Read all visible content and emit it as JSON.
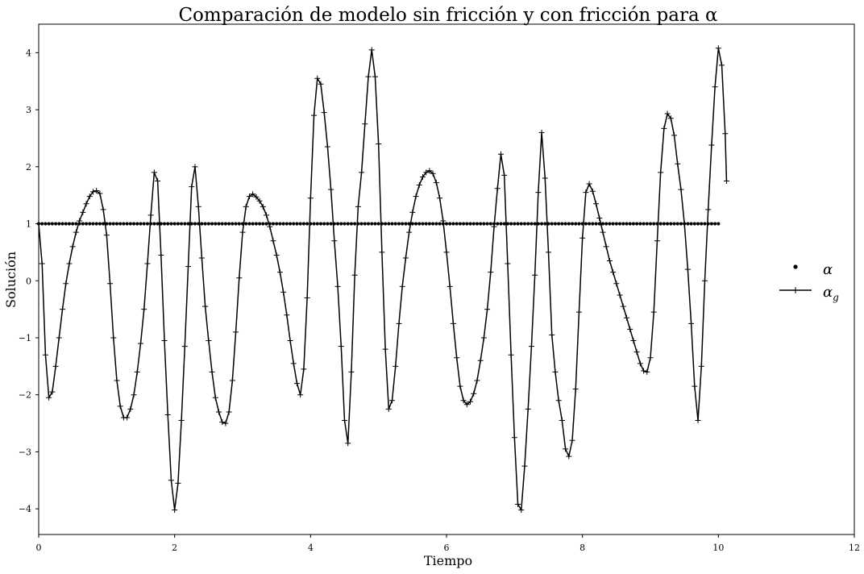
{
  "chart_data": {
    "type": "line",
    "title": "Comparación de modelo sin fricción y con fricción para α",
    "xlabel": "Tiempo",
    "ylabel": "Solución",
    "xlim": [
      0,
      12
    ],
    "ylim": [
      -4.45,
      4.5
    ],
    "xticks": [
      0,
      2,
      4,
      6,
      8,
      10,
      12
    ],
    "yticks": [
      -4,
      -3,
      -2,
      -1,
      0,
      1,
      2,
      3,
      4
    ],
    "xtick_labels": [
      "0",
      "2",
      "4",
      "6",
      "8",
      "10",
      "12"
    ],
    "ytick_labels": [
      "−4",
      "−3",
      "−2",
      "−1",
      "0",
      "1",
      "2",
      "3",
      "4"
    ],
    "grid": false,
    "legend_position": "center-right",
    "series": [
      {
        "name": "α",
        "style": "dots",
        "color": "#000000",
        "constant": 1,
        "x_range": [
          0,
          10
        ],
        "point_count": 201
      },
      {
        "name": "α",
        "subscript": "g",
        "style": "line-plus",
        "color": "#000000",
        "points": [
          [
            0,
            1
          ],
          [
            0.05,
            0.3
          ],
          [
            0.1,
            -1.3
          ],
          [
            0.15,
            -2.05
          ],
          [
            0.2,
            -1.95
          ],
          [
            0.25,
            -1.5
          ],
          [
            0.3,
            -1.0
          ],
          [
            0.35,
            -0.5
          ],
          [
            0.4,
            -0.05
          ],
          [
            0.45,
            0.3
          ],
          [
            0.5,
            0.6
          ],
          [
            0.55,
            0.85
          ],
          [
            0.6,
            1.05
          ],
          [
            0.65,
            1.2
          ],
          [
            0.7,
            1.35
          ],
          [
            0.75,
            1.48
          ],
          [
            0.8,
            1.56
          ],
          [
            0.85,
            1.58
          ],
          [
            0.9,
            1.53
          ],
          [
            0.95,
            1.25
          ],
          [
            1.0,
            0.8
          ],
          [
            1.05,
            -0.05
          ],
          [
            1.1,
            -1.0
          ],
          [
            1.15,
            -1.75
          ],
          [
            1.2,
            -2.2
          ],
          [
            1.25,
            -2.4
          ],
          [
            1.3,
            -2.4
          ],
          [
            1.35,
            -2.25
          ],
          [
            1.4,
            -2.0
          ],
          [
            1.45,
            -1.6
          ],
          [
            1.5,
            -1.1
          ],
          [
            1.55,
            -0.5
          ],
          [
            1.6,
            0.3
          ],
          [
            1.65,
            1.15
          ],
          [
            1.7,
            1.9
          ],
          [
            1.75,
            1.75
          ],
          [
            1.8,
            0.45
          ],
          [
            1.85,
            -1.05
          ],
          [
            1.9,
            -2.35
          ],
          [
            1.95,
            -3.5
          ],
          [
            2.0,
            -4.02
          ],
          [
            2.05,
            -3.55
          ],
          [
            2.1,
            -2.45
          ],
          [
            2.15,
            -1.15
          ],
          [
            2.2,
            0.25
          ],
          [
            2.25,
            1.65
          ],
          [
            2.3,
            2.0
          ],
          [
            2.35,
            1.3
          ],
          [
            2.4,
            0.4
          ],
          [
            2.45,
            -0.45
          ],
          [
            2.5,
            -1.05
          ],
          [
            2.55,
            -1.6
          ],
          [
            2.6,
            -2.05
          ],
          [
            2.65,
            -2.3
          ],
          [
            2.7,
            -2.48
          ],
          [
            2.75,
            -2.5
          ],
          [
            2.8,
            -2.3
          ],
          [
            2.85,
            -1.75
          ],
          [
            2.9,
            -0.9
          ],
          [
            2.95,
            0.05
          ],
          [
            3.0,
            0.85
          ],
          [
            3.05,
            1.3
          ],
          [
            3.1,
            1.48
          ],
          [
            3.15,
            1.52
          ],
          [
            3.2,
            1.47
          ],
          [
            3.25,
            1.4
          ],
          [
            3.3,
            1.3
          ],
          [
            3.35,
            1.15
          ],
          [
            3.4,
            0.95
          ],
          [
            3.45,
            0.7
          ],
          [
            3.5,
            0.45
          ],
          [
            3.55,
            0.15
          ],
          [
            3.6,
            -0.2
          ],
          [
            3.65,
            -0.6
          ],
          [
            3.7,
            -1.05
          ],
          [
            3.75,
            -1.45
          ],
          [
            3.8,
            -1.8
          ],
          [
            3.85,
            -2.0
          ],
          [
            3.9,
            -1.55
          ],
          [
            3.95,
            -0.3
          ],
          [
            4.0,
            1.45
          ],
          [
            4.05,
            2.9
          ],
          [
            4.1,
            3.55
          ],
          [
            4.15,
            3.45
          ],
          [
            4.2,
            2.95
          ],
          [
            4.25,
            2.35
          ],
          [
            4.3,
            1.6
          ],
          [
            4.35,
            0.7
          ],
          [
            4.4,
            -0.1
          ],
          [
            4.45,
            -1.15
          ],
          [
            4.5,
            -2.45
          ],
          [
            4.55,
            -2.85
          ],
          [
            4.6,
            -1.6
          ],
          [
            4.65,
            0.1
          ],
          [
            4.7,
            1.3
          ],
          [
            4.75,
            1.9
          ],
          [
            4.8,
            2.75
          ],
          [
            4.85,
            3.58
          ],
          [
            4.9,
            4.05
          ],
          [
            4.95,
            3.58
          ],
          [
            5.0,
            2.4
          ],
          [
            5.05,
            0.5
          ],
          [
            5.1,
            -1.2
          ],
          [
            5.15,
            -2.25
          ],
          [
            5.2,
            -2.1
          ],
          [
            5.25,
            -1.5
          ],
          [
            5.3,
            -0.75
          ],
          [
            5.35,
            -0.1
          ],
          [
            5.4,
            0.4
          ],
          [
            5.45,
            0.85
          ],
          [
            5.5,
            1.2
          ],
          [
            5.55,
            1.48
          ],
          [
            5.6,
            1.68
          ],
          [
            5.65,
            1.82
          ],
          [
            5.7,
            1.9
          ],
          [
            5.75,
            1.93
          ],
          [
            5.8,
            1.88
          ],
          [
            5.85,
            1.72
          ],
          [
            5.9,
            1.45
          ],
          [
            5.95,
            1.05
          ],
          [
            6.0,
            0.5
          ],
          [
            6.05,
            -0.1
          ],
          [
            6.1,
            -0.75
          ],
          [
            6.15,
            -1.35
          ],
          [
            6.2,
            -1.85
          ],
          [
            6.25,
            -2.1
          ],
          [
            6.3,
            -2.17
          ],
          [
            6.35,
            -2.12
          ],
          [
            6.4,
            -1.98
          ],
          [
            6.45,
            -1.75
          ],
          [
            6.5,
            -1.4
          ],
          [
            6.55,
            -1.0
          ],
          [
            6.6,
            -0.5
          ],
          [
            6.65,
            0.15
          ],
          [
            6.7,
            0.95
          ],
          [
            6.75,
            1.62
          ],
          [
            6.8,
            2.22
          ],
          [
            6.85,
            1.85
          ],
          [
            6.9,
            0.3
          ],
          [
            6.95,
            -1.3
          ],
          [
            7.0,
            -2.75
          ],
          [
            7.05,
            -3.92
          ],
          [
            7.1,
            -4.02
          ],
          [
            7.15,
            -3.25
          ],
          [
            7.2,
            -2.25
          ],
          [
            7.25,
            -1.15
          ],
          [
            7.3,
            0.1
          ],
          [
            7.35,
            1.55
          ],
          [
            7.4,
            2.6
          ],
          [
            7.45,
            1.8
          ],
          [
            7.5,
            0.5
          ],
          [
            7.55,
            -0.95
          ],
          [
            7.6,
            -1.6
          ],
          [
            7.65,
            -2.1
          ],
          [
            7.7,
            -2.45
          ],
          [
            7.75,
            -2.95
          ],
          [
            7.8,
            -3.08
          ],
          [
            7.85,
            -2.8
          ],
          [
            7.9,
            -1.9
          ],
          [
            7.95,
            -0.55
          ],
          [
            8.0,
            0.75
          ],
          [
            8.05,
            1.55
          ],
          [
            8.1,
            1.7
          ],
          [
            8.15,
            1.57
          ],
          [
            8.2,
            1.35
          ],
          [
            8.25,
            1.1
          ],
          [
            8.3,
            0.85
          ],
          [
            8.35,
            0.6
          ],
          [
            8.4,
            0.35
          ],
          [
            8.45,
            0.15
          ],
          [
            8.5,
            -0.05
          ],
          [
            8.55,
            -0.25
          ],
          [
            8.6,
            -0.45
          ],
          [
            8.65,
            -0.65
          ],
          [
            8.7,
            -0.85
          ],
          [
            8.75,
            -1.05
          ],
          [
            8.8,
            -1.25
          ],
          [
            8.85,
            -1.45
          ],
          [
            8.9,
            -1.58
          ],
          [
            8.95,
            -1.6
          ],
          [
            9.0,
            -1.35
          ],
          [
            9.05,
            -0.55
          ],
          [
            9.1,
            0.7
          ],
          [
            9.15,
            1.9
          ],
          [
            9.2,
            2.67
          ],
          [
            9.25,
            2.93
          ],
          [
            9.3,
            2.85
          ],
          [
            9.35,
            2.55
          ],
          [
            9.4,
            2.05
          ],
          [
            9.45,
            1.6
          ],
          [
            9.5,
            1.0
          ],
          [
            9.55,
            0.2
          ],
          [
            9.6,
            -0.75
          ],
          [
            9.65,
            -1.85
          ],
          [
            9.7,
            -2.45
          ],
          [
            9.75,
            -1.5
          ],
          [
            9.8,
            0.0
          ],
          [
            9.85,
            1.25
          ],
          [
            9.9,
            2.38
          ],
          [
            9.95,
            3.4
          ],
          [
            10.0,
            4.08
          ],
          [
            10.05,
            3.78
          ],
          [
            10.1,
            2.58
          ],
          [
            10.12,
            1.75
          ]
        ]
      }
    ]
  }
}
